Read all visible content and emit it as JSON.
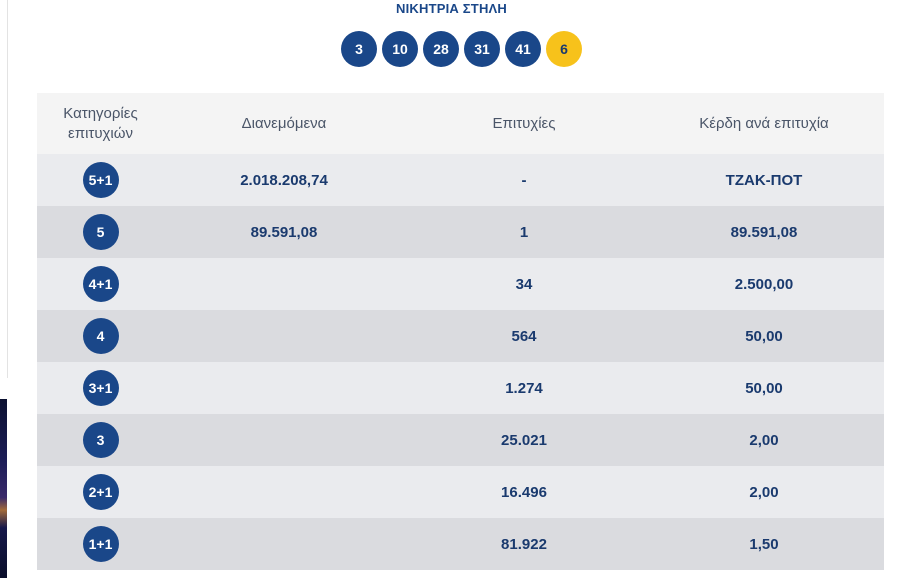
{
  "title": "ΝΙΚΗΤΡΙΑ ΣΤΗΛΗ",
  "winning_numbers": [
    "3",
    "10",
    "28",
    "31",
    "41"
  ],
  "bonus_number": "6",
  "colors": {
    "primary": "#1a4789",
    "bonus": "#f7c21b",
    "row_light": "#eaebee",
    "row_dark": "#dadbdf",
    "header_bg": "#f4f4f4"
  },
  "table": {
    "headers": {
      "category_line1": "Κατηγορίες",
      "category_line2": "επιτυχιών",
      "distributed": "Διανεμόμενα",
      "winners": "Επιτυχίες",
      "prize": "Κέρδη ανά επιτυχία"
    },
    "rows": [
      {
        "category": "5+1",
        "distributed": "2.018.208,74",
        "winners": "-",
        "prize": "ΤΖΑΚ-ΠΟΤ"
      },
      {
        "category": "5",
        "distributed": "89.591,08",
        "winners": "1",
        "prize": "89.591,08"
      },
      {
        "category": "4+1",
        "distributed": "",
        "winners": "34",
        "prize": "2.500,00"
      },
      {
        "category": "4",
        "distributed": "",
        "winners": "564",
        "prize": "50,00"
      },
      {
        "category": "3+1",
        "distributed": "",
        "winners": "1.274",
        "prize": "50,00"
      },
      {
        "category": "3",
        "distributed": "",
        "winners": "25.021",
        "prize": "2,00"
      },
      {
        "category": "2+1",
        "distributed": "",
        "winners": "16.496",
        "prize": "2,00"
      },
      {
        "category": "1+1",
        "distributed": "",
        "winners": "81.922",
        "prize": "1,50"
      }
    ]
  }
}
